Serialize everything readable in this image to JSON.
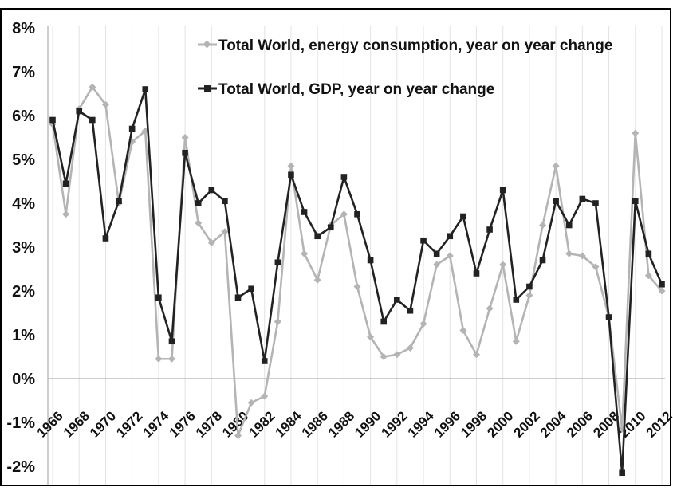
{
  "chart_data": {
    "type": "line",
    "x": [
      1966,
      1967,
      1968,
      1969,
      1970,
      1971,
      1972,
      1973,
      1974,
      1975,
      1976,
      1977,
      1978,
      1979,
      1980,
      1981,
      1982,
      1983,
      1984,
      1985,
      1986,
      1987,
      1988,
      1989,
      1990,
      1991,
      1992,
      1993,
      1994,
      1995,
      1996,
      1997,
      1998,
      1999,
      2000,
      2001,
      2002,
      2003,
      2004,
      2005,
      2006,
      2007,
      2008,
      2009,
      2010,
      2011,
      2012
    ],
    "x_tick_labels": [
      "1966",
      "1968",
      "1970",
      "1972",
      "1974",
      "1976",
      "1978",
      "1980",
      "1982",
      "1984",
      "1986",
      "1988",
      "1990",
      "1992",
      "1994",
      "1996",
      "1998",
      "2000",
      "2002",
      "2004",
      "2006",
      "2008",
      "2010",
      "2012"
    ],
    "y_tick_labels": [
      "8%",
      "7%",
      "6%",
      "5%",
      "4%",
      "3%",
      "2%",
      "1%",
      "0%",
      "-1%",
      "-2%"
    ],
    "ylim": [
      -2.5,
      8
    ],
    "grid": "vertical",
    "legend_position": "top-center",
    "series": [
      {
        "name": "Total World, energy consumption, year on year change",
        "color": "#b4b4b4",
        "marker": "diamond",
        "values": [
          5.8,
          3.75,
          6.15,
          6.65,
          6.25,
          4.0,
          5.4,
          5.65,
          0.45,
          0.45,
          5.5,
          3.55,
          3.1,
          3.35,
          -1.3,
          -0.55,
          -0.4,
          1.3,
          4.85,
          2.85,
          2.25,
          3.5,
          3.75,
          2.1,
          0.95,
          0.5,
          0.55,
          0.7,
          1.25,
          2.6,
          2.8,
          1.1,
          0.55,
          1.6,
          2.6,
          0.85,
          1.9,
          3.5,
          4.85,
          2.85,
          2.8,
          2.55,
          1.4,
          -1.15,
          5.6,
          2.35,
          2.0
        ]
      },
      {
        "name": "Total World, GDP, year on year change",
        "color": "#222222",
        "marker": "square",
        "values": [
          5.9,
          4.45,
          6.1,
          5.9,
          3.2,
          4.05,
          5.7,
          6.6,
          1.85,
          0.85,
          5.15,
          4.0,
          4.3,
          4.05,
          1.85,
          2.05,
          0.4,
          2.65,
          4.65,
          3.8,
          3.25,
          3.45,
          4.6,
          3.75,
          2.7,
          1.3,
          1.8,
          1.55,
          3.15,
          2.85,
          3.25,
          3.7,
          2.4,
          3.4,
          4.3,
          1.8,
          2.1,
          2.7,
          4.05,
          3.5,
          4.1,
          4.0,
          1.4,
          -2.15,
          4.05,
          2.85,
          2.15
        ]
      }
    ]
  }
}
